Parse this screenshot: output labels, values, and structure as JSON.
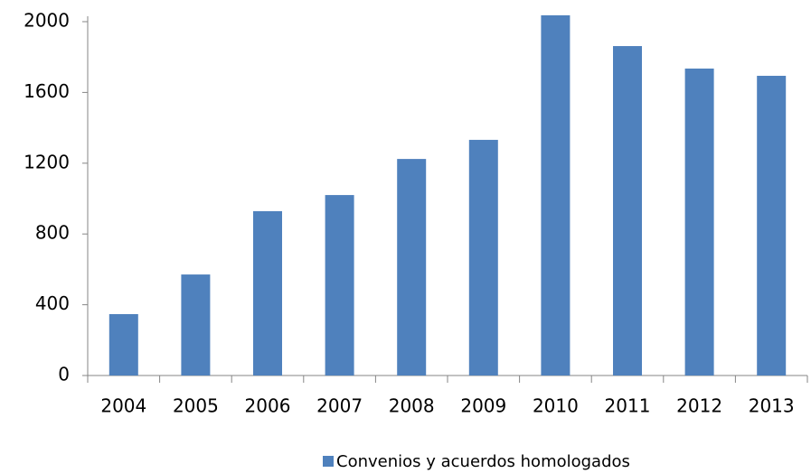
{
  "chart_data": {
    "type": "bar",
    "categories": [
      "2004",
      "2005",
      "2006",
      "2007",
      "2008",
      "2009",
      "2010",
      "2011",
      "2012",
      "2013"
    ],
    "series": [
      {
        "name": "Convenios y acuerdos homologados",
        "color": "#4f81bd",
        "values": [
          347,
          571,
          929,
          1020,
          1224,
          1332,
          2036,
          1862,
          1735,
          1694
        ]
      }
    ],
    "ylim": [
      0,
      2000
    ],
    "yticks": [
      0,
      400,
      800,
      1200,
      1600,
      2000
    ],
    "grid": false,
    "legend": "bottom"
  }
}
